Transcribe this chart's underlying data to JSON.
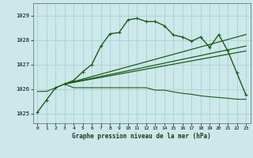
{
  "bg_color": "#cce8ea",
  "grid_color": "#b0d4d6",
  "line_color": "#1a5c1a",
  "title": "Graphe pression niveau de la mer (hPa)",
  "xlim": [
    -0.5,
    23.5
  ],
  "ylim": [
    1024.6,
    1029.5
  ],
  "yticks": [
    1025,
    1026,
    1027,
    1028,
    1029
  ],
  "xticks": [
    0,
    1,
    2,
    3,
    4,
    5,
    6,
    7,
    8,
    9,
    10,
    11,
    12,
    13,
    14,
    15,
    16,
    17,
    18,
    19,
    20,
    21,
    22,
    23
  ],
  "line1_x": [
    0,
    1,
    2,
    3,
    4,
    5,
    6,
    7,
    8,
    9,
    10,
    11,
    12,
    13,
    14,
    15,
    16,
    17,
    18,
    19,
    20,
    21,
    22,
    23
  ],
  "line1_y": [
    1025.05,
    1025.55,
    1026.05,
    1026.2,
    1026.35,
    1026.7,
    1027.0,
    1027.75,
    1028.25,
    1028.3,
    1028.82,
    1028.88,
    1028.75,
    1028.75,
    1028.58,
    1028.2,
    1028.12,
    1027.95,
    1028.12,
    1027.7,
    1028.22,
    1027.55,
    1026.65,
    1025.75
  ],
  "line2_x": [
    0,
    1,
    2,
    3,
    3,
    4,
    5,
    6,
    7,
    8,
    9,
    10,
    11,
    12,
    13,
    14,
    15,
    16,
    17,
    18,
    19,
    20,
    21,
    22,
    23
  ],
  "line2_y": [
    1025.9,
    1025.9,
    1026.05,
    1026.2,
    1026.2,
    1026.05,
    1026.05,
    1026.05,
    1026.05,
    1026.05,
    1026.05,
    1026.05,
    1026.05,
    1026.05,
    1025.95,
    1025.95,
    1025.88,
    1025.82,
    1025.78,
    1025.72,
    1025.68,
    1025.65,
    1025.62,
    1025.58,
    1025.58
  ],
  "line3_x": [
    3,
    23
  ],
  "line3_y": [
    1026.2,
    1027.55
  ],
  "line4_x": [
    3,
    23
  ],
  "line4_y": [
    1026.2,
    1027.75
  ],
  "line5_x": [
    3,
    23
  ],
  "line5_y": [
    1026.2,
    1028.22
  ]
}
